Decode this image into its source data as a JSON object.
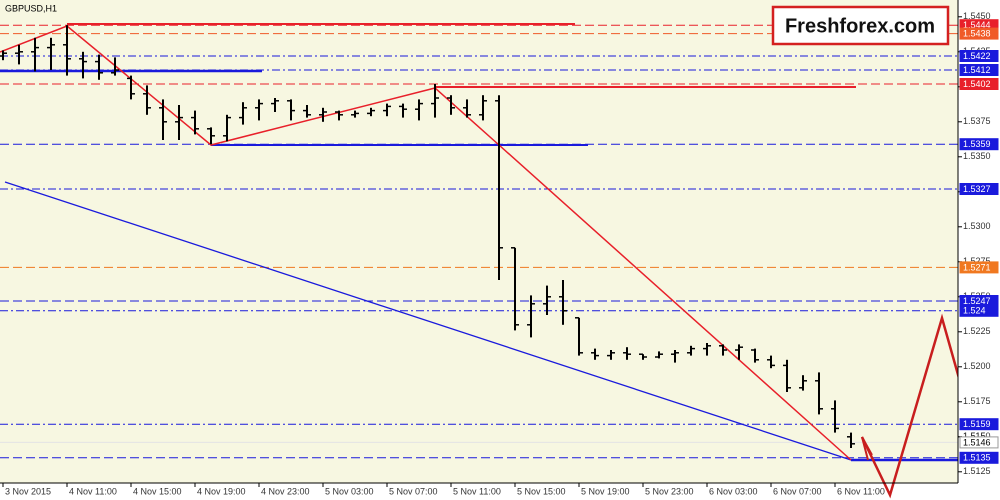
{
  "chart_data": {
    "type": "ohlc",
    "title": "GBPUSD,H1",
    "logo": "Freshforex.com",
    "background": "#f7f7e1",
    "bar_color": "#000000",
    "categories": [
      "3 Nov 2015",
      null,
      null,
      null,
      "4 Nov 11:00",
      null,
      null,
      null,
      "4 Nov 15:00",
      null,
      null,
      null,
      "4 Nov 19:00",
      null,
      null,
      null,
      "4 Nov 23:00",
      null,
      null,
      null,
      "5 Nov 03:00",
      null,
      null,
      null,
      "5 Nov 07:00",
      null,
      null,
      null,
      "5 Nov 11:00",
      null,
      null,
      null,
      "5 Nov 15:00",
      null,
      null,
      null,
      "5 Nov 19:00",
      null,
      null,
      null,
      "5 Nov 23:00",
      null,
      null,
      null,
      "6 Nov 03:00",
      null,
      null,
      null,
      "6 Nov 07:00",
      null,
      null,
      null,
      "6 Nov 11:00",
      null
    ],
    "open": [
      1.5422,
      1.5424,
      1.5425,
      1.5428,
      1.543,
      1.542,
      1.5418,
      1.541,
      1.5406,
      1.5395,
      1.5385,
      1.5375,
      1.5378,
      1.537,
      1.5365,
      1.5378,
      1.5385,
      1.5388,
      1.539,
      1.5383,
      1.538,
      1.5382,
      1.538,
      1.5381,
      1.5383,
      1.5386,
      1.5384,
      1.5388,
      1.5392,
      1.5385,
      1.538,
      1.539,
      1.5285,
      1.523,
      1.5245,
      1.525,
      1.5235,
      1.521,
      1.5208,
      1.521,
      1.5209,
      1.5207,
      1.5209,
      1.521,
      1.5213,
      1.5215,
      1.5212,
      1.5212,
      1.5205,
      1.5201,
      1.5185,
      1.519,
      1.517,
      1.515
    ],
    "high": [
      1.5426,
      1.543,
      1.5435,
      1.5435,
      1.5444,
      1.5425,
      1.5423,
      1.5421,
      1.5408,
      1.5401,
      1.5391,
      1.5387,
      1.5383,
      1.5371,
      1.538,
      1.5389,
      1.5391,
      1.5392,
      1.5391,
      1.5387,
      1.5385,
      1.5383,
      1.5383,
      1.5385,
      1.5388,
      1.5388,
      1.5391,
      1.5402,
      1.5394,
      1.5391,
      1.5394,
      1.5394,
      1.5285,
      1.5251,
      1.5258,
      1.5262,
      1.5235,
      1.5213,
      1.5212,
      1.5214,
      1.5209,
      1.5211,
      1.5212,
      1.5215,
      1.5217,
      1.5216,
      1.5216,
      1.5213,
      1.5208,
      1.5205,
      1.5194,
      1.5196,
      1.5176,
      1.5153
    ],
    "low": [
      1.5419,
      1.5416,
      1.5411,
      1.5412,
      1.5408,
      1.5406,
      1.5405,
      1.5408,
      1.5391,
      1.538,
      1.5362,
      1.5362,
      1.5366,
      1.5359,
      1.5361,
      1.5373,
      1.5376,
      1.5382,
      1.5376,
      1.5378,
      1.5375,
      1.5376,
      1.5378,
      1.5379,
      1.5379,
      1.5378,
      1.5376,
      1.5378,
      1.538,
      1.5378,
      1.5376,
      1.5262,
      1.5226,
      1.5221,
      1.5237,
      1.523,
      1.5208,
      1.5205,
      1.5205,
      1.5205,
      1.5205,
      1.5206,
      1.5203,
      1.5208,
      1.5208,
      1.5208,
      1.5205,
      1.5203,
      1.5199,
      1.5182,
      1.5183,
      1.5166,
      1.5153,
      1.5142
    ],
    "close": [
      1.5424,
      1.5425,
      1.5428,
      1.543,
      1.542,
      1.5418,
      1.541,
      1.5412,
      1.5395,
      1.5385,
      1.5375,
      1.5378,
      1.537,
      1.5365,
      1.5378,
      1.5385,
      1.5388,
      1.539,
      1.5383,
      1.538,
      1.5382,
      1.538,
      1.5381,
      1.5383,
      1.5386,
      1.5384,
      1.5388,
      1.5392,
      1.5385,
      1.538,
      1.539,
      1.5285,
      1.523,
      1.5245,
      1.525,
      1.524,
      1.521,
      1.5208,
      1.521,
      1.5209,
      1.5207,
      1.5209,
      1.521,
      1.5213,
      1.5215,
      1.5212,
      1.5214,
      1.5205,
      1.5201,
      1.5185,
      1.519,
      1.517,
      1.5156,
      1.5145
    ],
    "ylim": [
      1.5117,
      1.5462
    ],
    "yticks": [
      {
        "value": 1.5125,
        "label": "1.5125"
      },
      1.515,
      {
        "value": 1.515,
        "label": "1.5150"
      },
      1.5175,
      {
        "value": 1.52,
        "label": "1.5200"
      },
      1.5225,
      {
        "value": 1.525,
        "label": "1.5250"
      },
      1.5275,
      {
        "value": 1.53,
        "label": "1.5300"
      },
      1.5325,
      {
        "value": 1.535,
        "label": "1.5350"
      },
      1.5375,
      {
        "value": 1.54,
        "label": "1.5400"
      },
      1.5425,
      {
        "value": 1.545,
        "label": "1.5450"
      }
    ],
    "levels": [
      {
        "value": 1.5444,
        "color": "#e8202a",
        "style": "dashed"
      },
      {
        "value": 1.5438,
        "color": "#f05a28",
        "style": "dashed"
      },
      {
        "value": 1.5422,
        "color": "#1a1adc",
        "style": "dashdot"
      },
      {
        "value": 1.5412,
        "color": "#1a1adc",
        "style": "dashdot"
      },
      {
        "value": 1.5402,
        "color": "#e8202a",
        "style": "dashed"
      },
      {
        "value": 1.5359,
        "color": "#1a1adc",
        "style": "dashed"
      },
      {
        "value": 1.5327,
        "color": "#1a1adc",
        "style": "dashdot"
      },
      {
        "value": 1.5271,
        "color": "#f07820",
        "style": "dashed"
      },
      {
        "value": 1.5247,
        "color": "#1a1adc",
        "style": "dashed"
      },
      {
        "value": 1.524,
        "color": "#1a1adc",
        "style": "dashdot"
      },
      {
        "value": 1.5159,
        "color": "#1a1adc",
        "style": "dashdot"
      },
      {
        "value": 1.5146,
        "color": "#e4e4e4",
        "style": "solid"
      },
      {
        "value": 1.5135,
        "color": "#1a1adc",
        "style": "dashed"
      }
    ]
  }
}
